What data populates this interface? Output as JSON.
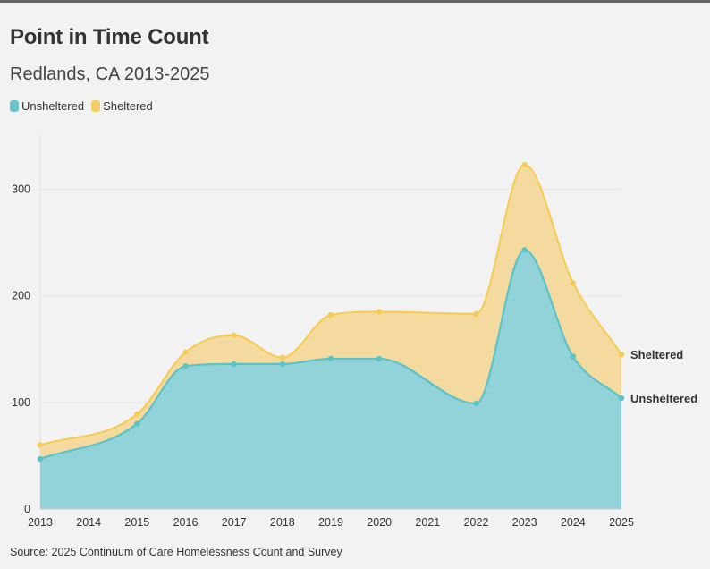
{
  "title": "Point in Time Count",
  "subtitle": "Redlands, CA 2013-2025",
  "source": "Source: 2025 Continuum of Care Homelessness Count and Survey",
  "legend": [
    {
      "label": "Unsheltered",
      "color": "#6cc5cc"
    },
    {
      "label": "Sheltered",
      "color": "#f2cd69"
    }
  ],
  "chart_data": {
    "type": "area",
    "stacked": false,
    "x": [
      2013,
      2015,
      2016,
      2017,
      2018,
      2019,
      2020,
      2022,
      2023,
      2024,
      2025
    ],
    "x_ticks": [
      "2013",
      "2014",
      "2015",
      "2016",
      "2017",
      "2018",
      "2019",
      "2020",
      "2021",
      "2022",
      "2023",
      "2024",
      "2025"
    ],
    "y_ticks": [
      "0",
      "100",
      "200",
      "300"
    ],
    "ylim": [
      0,
      350
    ],
    "xlim": [
      2013,
      2025
    ],
    "series": [
      {
        "name": "Sheltered",
        "values": [
          60,
          89,
          147,
          163,
          142,
          182,
          185,
          183,
          323,
          212,
          145
        ],
        "line_color": "#f5cc55",
        "fill_color": "#f5daa0",
        "end_label": "Sheltered"
      },
      {
        "name": "Unsheltered",
        "values": [
          47,
          80,
          134,
          136,
          136,
          141,
          141,
          99,
          243,
          143,
          104
        ],
        "line_color": "#5cc3c9",
        "fill_color": "#91d3d9",
        "end_label": "Unsheltered"
      }
    ],
    "grid": true,
    "legend_position": "top-left"
  }
}
